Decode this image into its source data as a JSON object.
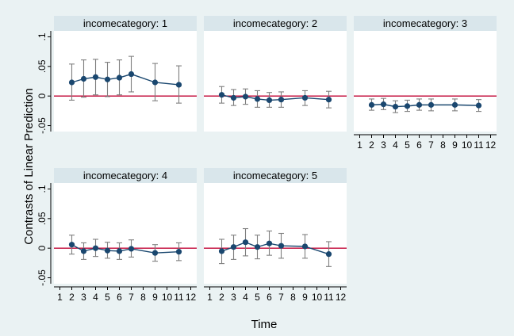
{
  "colors": {
    "outer_bg": "#eaf2f3",
    "plot_bg": "#ffffff",
    "strip_bg": "#d9e6eb",
    "marker": "#1a476f",
    "errorbar": "#7f7f7f",
    "refline": "#c10534"
  },
  "chart_data": {
    "type": "scatter",
    "style": "connected markers with 95% confidence interval bars, faceted by income category",
    "ylabel": "Contrasts of Linear Prediction",
    "xlabel": "Time",
    "reference_line_y": 0,
    "x_ticks": [
      1,
      2,
      3,
      4,
      5,
      6,
      7,
      8,
      9,
      10,
      11,
      12
    ],
    "y_ticks": [
      -0.05,
      0,
      0.05,
      0.1
    ],
    "y_tick_labels": [
      "-.05",
      "0",
      ".05",
      ".1"
    ],
    "ylim": [
      -0.06,
      0.11
    ],
    "xlim": [
      0.5,
      12.5
    ],
    "grid": false,
    "panels": [
      {
        "title": "incomecategory: 1",
        "x": [
          2,
          3,
          4,
          5,
          6,
          7,
          9,
          11
        ],
        "y": [
          0.023,
          0.029,
          0.032,
          0.028,
          0.031,
          0.037,
          0.023,
          0.019
        ],
        "lower": [
          -0.007,
          -0.002,
          0.002,
          -0.001,
          0.002,
          0.007,
          -0.008,
          -0.012
        ],
        "upper": [
          0.054,
          0.061,
          0.062,
          0.057,
          0.061,
          0.067,
          0.055,
          0.051
        ]
      },
      {
        "title": "incomecategory: 2",
        "x": [
          2,
          3,
          4,
          5,
          6,
          7,
          9,
          11
        ],
        "y": [
          0.002,
          -0.003,
          -0.001,
          -0.005,
          -0.007,
          -0.006,
          -0.003,
          -0.006
        ],
        "lower": [
          -0.012,
          -0.016,
          -0.014,
          -0.019,
          -0.019,
          -0.019,
          -0.016,
          -0.02
        ],
        "upper": [
          0.016,
          0.011,
          0.012,
          0.009,
          0.006,
          0.007,
          0.009,
          0.008
        ]
      },
      {
        "title": "incomecategory: 3",
        "x": [
          2,
          3,
          4,
          5,
          6,
          7,
          9,
          11
        ],
        "y": [
          -0.015,
          -0.014,
          -0.018,
          -0.017,
          -0.015,
          -0.015,
          -0.015,
          -0.016
        ],
        "lower": [
          -0.024,
          -0.023,
          -0.028,
          -0.026,
          -0.024,
          -0.025,
          -0.025,
          -0.026
        ],
        "upper": [
          -0.005,
          -0.004,
          -0.008,
          -0.007,
          -0.005,
          -0.005,
          -0.005,
          -0.006
        ]
      },
      {
        "title": "incomecategory: 4",
        "x": [
          2,
          3,
          4,
          5,
          6,
          7,
          9,
          11
        ],
        "y": [
          0.006,
          -0.005,
          0.0,
          -0.004,
          -0.005,
          -0.001,
          -0.008,
          -0.006
        ],
        "lower": [
          -0.01,
          -0.019,
          -0.014,
          -0.017,
          -0.019,
          -0.015,
          -0.022,
          -0.021
        ],
        "upper": [
          0.022,
          0.009,
          0.015,
          0.01,
          0.009,
          0.014,
          0.006,
          0.009
        ]
      },
      {
        "title": "incomecategory: 5",
        "x": [
          2,
          3,
          4,
          5,
          6,
          7,
          9,
          11
        ],
        "y": [
          -0.005,
          0.002,
          0.01,
          0.002,
          0.008,
          0.004,
          0.003,
          -0.01
        ],
        "lower": [
          -0.026,
          -0.019,
          -0.013,
          -0.018,
          -0.012,
          -0.017,
          -0.017,
          -0.031
        ],
        "upper": [
          0.015,
          0.022,
          0.033,
          0.022,
          0.029,
          0.025,
          0.023,
          0.011
        ]
      }
    ]
  }
}
